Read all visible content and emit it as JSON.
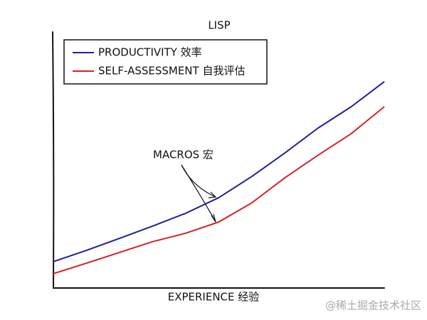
{
  "chart_data": {
    "type": "line",
    "title": "LISP",
    "xlabel": "EXPERIENCE 经验",
    "x": [
      0,
      1,
      2,
      3,
      4,
      5,
      6,
      7,
      8,
      9,
      10
    ],
    "xlim": [
      0,
      10
    ],
    "ylim": [
      0,
      10
    ],
    "legend": "upper left",
    "series": [
      {
        "name": "PRODUCTIVITY 效率",
        "color": "#1f1f9e",
        "values": [
          1.03,
          1.47,
          1.94,
          2.42,
          2.92,
          3.53,
          4.36,
          5.28,
          6.25,
          7.08,
          8.06
        ]
      },
      {
        "name": "SELF-ASSESSMENT 自我评估",
        "color": "#d42323",
        "values": [
          0.56,
          0.97,
          1.39,
          1.81,
          2.14,
          2.58,
          3.33,
          4.31,
          5.19,
          6.03,
          7.08
        ]
      }
    ],
    "annotation": "MACROS 宏"
  },
  "watermark": "@稀土掘金技术社区"
}
